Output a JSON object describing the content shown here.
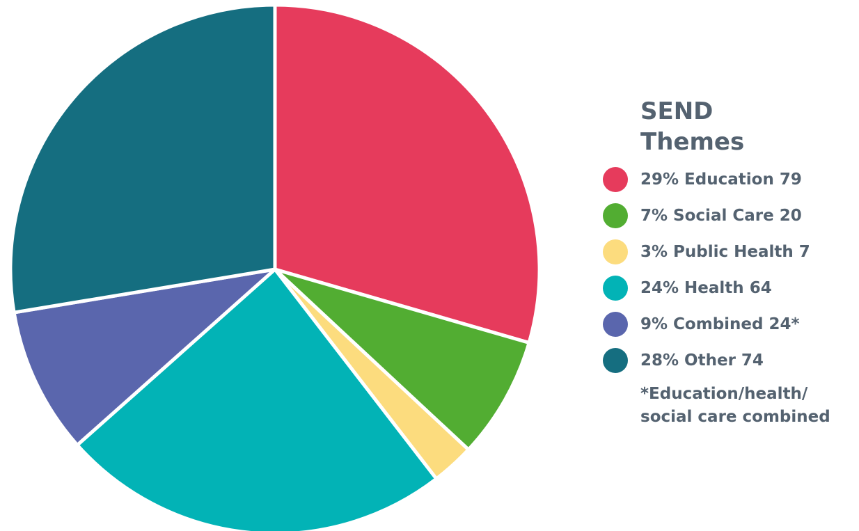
{
  "chart_data": {
    "type": "pie",
    "title": "SEND Themes",
    "legend_position": "right",
    "slices": [
      {
        "label": "29% Education 79",
        "category": "Education",
        "value": 79,
        "percent": 29,
        "color": "#e63b5c"
      },
      {
        "label": "7% Social Care 20",
        "category": "Social Care",
        "value": 20,
        "percent": 7,
        "color": "#52ad32"
      },
      {
        "label": "3% Public Health 7",
        "category": "Public Health",
        "value": 7,
        "percent": 3,
        "color": "#fcdc7e"
      },
      {
        "label": "24% Health 64",
        "category": "Health",
        "value": 64,
        "percent": 24,
        "color": "#02b3b6"
      },
      {
        "label": "9% Combined 24*",
        "category": "Combined",
        "value": 24,
        "percent": 9,
        "color": "#5a66ad"
      },
      {
        "label": "28% Other 74",
        "category": "Other",
        "value": 74,
        "percent": 28,
        "color": "#156e80"
      }
    ]
  },
  "legend": {
    "title_line1": "SEND",
    "title_line2": "Themes",
    "note_line1": "*Education/health/",
    "note_line2": "social care combined"
  }
}
